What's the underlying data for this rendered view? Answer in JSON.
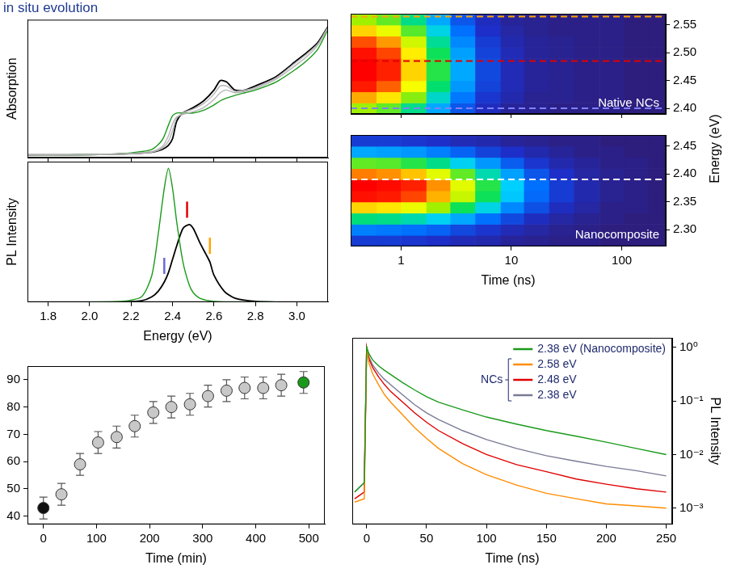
{
  "chart_data": [
    {
      "type": "line",
      "title": "in situ evolution",
      "y_label": "Absorption",
      "tick_labels": false,
      "x": [
        1.7,
        1.9,
        2.1,
        2.2,
        2.3,
        2.35,
        2.38,
        2.4,
        2.42,
        2.45,
        2.5,
        2.55,
        2.6,
        2.63,
        2.66,
        2.7,
        2.75,
        2.8,
        2.9,
        3.0,
        3.05,
        3.1,
        3.15
      ],
      "series": [
        {
          "color": "#b4b4b4",
          "values": [
            0.02,
            0.02,
            0.025,
            0.03,
            0.045,
            0.08,
            0.16,
            0.25,
            0.3,
            0.32,
            0.34,
            0.37,
            0.43,
            0.48,
            0.5,
            0.48,
            0.49,
            0.51,
            0.58,
            0.69,
            0.75,
            0.83,
            0.96
          ]
        },
        {
          "color": "#b4b4b4",
          "values": [
            0.02,
            0.02,
            0.025,
            0.03,
            0.04,
            0.07,
            0.12,
            0.2,
            0.29,
            0.33,
            0.36,
            0.4,
            0.47,
            0.53,
            0.53,
            0.49,
            0.5,
            0.52,
            0.59,
            0.71,
            0.77,
            0.84,
            0.965
          ]
        },
        {
          "color": "#1a9a1a",
          "values": [
            0.02,
            0.02,
            0.025,
            0.035,
            0.06,
            0.13,
            0.24,
            0.31,
            0.33,
            0.33,
            0.33,
            0.35,
            0.39,
            0.42,
            0.44,
            0.46,
            0.48,
            0.5,
            0.56,
            0.66,
            0.72,
            0.8,
            0.95
          ]
        },
        {
          "color": "#000000",
          "values": [
            0.02,
            0.02,
            0.025,
            0.03,
            0.04,
            0.06,
            0.09,
            0.14,
            0.27,
            0.33,
            0.37,
            0.42,
            0.5,
            0.57,
            0.56,
            0.5,
            0.5,
            0.53,
            0.6,
            0.72,
            0.78,
            0.85,
            0.97
          ]
        }
      ],
      "xlim": [
        1.7,
        3.15
      ],
      "xticks": [
        1.8,
        {
          "value": 2,
          "label": "2.0"
        },
        2.2,
        2.4,
        2.6,
        2.8,
        {
          "value": 3,
          "label": "3.0"
        }
      ],
      "ylim": [
        0,
        1.02
      ],
      "yticks": []
    },
    {
      "type": "line",
      "x_label": "Energy (eV)",
      "y_label": "PL Intensity",
      "tick_labels": "x",
      "x": [
        2.0,
        2.15,
        2.25,
        2.3,
        2.33,
        2.36,
        2.38,
        2.4,
        2.42,
        2.45,
        2.48,
        2.5,
        2.53,
        2.56,
        2.58,
        2.6,
        2.65,
        2.7,
        2.8,
        2.9
      ],
      "series": [
        {
          "color": "#1a9a1a",
          "values": [
            0,
            0.005,
            0.04,
            0.2,
            0.5,
            0.85,
            1,
            0.85,
            0.6,
            0.3,
            0.13,
            0.07,
            0.03,
            0.015,
            0.01,
            0.005,
            0,
            0,
            0,
            0
          ]
        },
        {
          "color": "#000000",
          "values": [
            0,
            0,
            0.01,
            0.04,
            0.08,
            0.15,
            0.22,
            0.32,
            0.42,
            0.55,
            0.58,
            0.55,
            0.45,
            0.36,
            0.3,
            0.2,
            0.08,
            0.03,
            0.005,
            0
          ]
        }
      ],
      "energy_marks": [
        {
          "x": 2.36,
          "color": "#6a6ad8"
        },
        {
          "x": 2.47,
          "color": "#e00000"
        },
        {
          "x": 2.58,
          "color": "#ffa500"
        }
      ],
      "xlim": [
        1.7,
        3.15
      ],
      "xticks": [
        1.8,
        {
          "value": 2,
          "label": "2.0"
        },
        2.2,
        2.4,
        2.6,
        2.8,
        {
          "value": 3,
          "label": "3.0"
        }
      ],
      "ylim": [
        0,
        1.05
      ],
      "yticks": []
    },
    {
      "type": "scatter",
      "x_label": "Time (min)",
      "x": [
        0,
        34,
        69,
        103,
        138,
        172,
        207,
        241,
        276,
        310,
        345,
        379,
        414,
        448,
        490
      ],
      "values": [
        43,
        48,
        59,
        67,
        69,
        73,
        78,
        80,
        81,
        84,
        86,
        87,
        87,
        88,
        89
      ],
      "errors": [
        4,
        4,
        4,
        4,
        4,
        4,
        4,
        4,
        4,
        4,
        4,
        4,
        4,
        4,
        4
      ],
      "colors": [
        "#111111",
        "#c8c8c8",
        "#c8c8c8",
        "#c8c8c8",
        "#c8c8c8",
        "#c8c8c8",
        "#c8c8c8",
        "#c8c8c8",
        "#c8c8c8",
        "#c8c8c8",
        "#c8c8c8",
        "#c8c8c8",
        "#c8c8c8",
        "#c8c8c8",
        "#1a9a1a"
      ],
      "xlim": [
        -30,
        530
      ],
      "xticks": [
        0,
        100,
        200,
        300,
        400,
        500
      ],
      "ylim": [
        37,
        95
      ],
      "yticks": [
        40,
        50,
        60,
        70,
        80,
        90
      ]
    },
    {
      "type": "heatmap",
      "label": "Native NCs",
      "log": "x",
      "tick_labels": "y",
      "x_edges": [
        0.35,
        0.6,
        1,
        1.7,
        2.8,
        4.7,
        8,
        13,
        22,
        37,
        63,
        105,
        175,
        250
      ],
      "y_edges": [
        2.39,
        2.41,
        2.43,
        2.45,
        2.47,
        2.49,
        2.51,
        2.53,
        2.55,
        2.57
      ],
      "cells": [
        [
          0.55,
          0.5,
          0.39,
          0.25,
          0.14,
          0.07,
          0.03,
          0.02,
          0.01,
          0.01,
          0.01,
          0,
          0
        ],
        [
          0.75,
          0.68,
          0.53,
          0.34,
          0.19,
          0.09,
          0.05,
          0.02,
          0.02,
          0.01,
          0.01,
          0,
          0
        ],
        [
          0.92,
          0.83,
          0.64,
          0.41,
          0.23,
          0.11,
          0.06,
          0.03,
          0.02,
          0.01,
          0.01,
          0,
          0
        ],
        [
          1,
          0.9,
          0.7,
          0.45,
          0.25,
          0.12,
          0.06,
          0.03,
          0.02,
          0.01,
          0.01,
          0,
          0
        ],
        [
          1,
          0.9,
          0.7,
          0.45,
          0.25,
          0.12,
          0.06,
          0.03,
          0.02,
          0.01,
          0.01,
          0,
          0
        ],
        [
          0.95,
          0.86,
          0.67,
          0.43,
          0.24,
          0.11,
          0.06,
          0.03,
          0.02,
          0.01,
          0.01,
          0,
          0
        ],
        [
          0.85,
          0.77,
          0.6,
          0.38,
          0.21,
          0.1,
          0.05,
          0.03,
          0.02,
          0.01,
          0.01,
          0,
          0
        ],
        [
          0.7,
          0.63,
          0.49,
          0.32,
          0.18,
          0.08,
          0.04,
          0.02,
          0.01,
          0.01,
          0.01,
          0,
          0
        ],
        [
          0.55,
          0.5,
          0.39,
          0.25,
          0.14,
          0.07,
          0.03,
          0.02,
          0.01,
          0.01,
          0.01,
          0,
          0
        ]
      ],
      "lines": [
        {
          "y": 2.565,
          "color": "#ffa500"
        },
        {
          "y": 2.485,
          "color": "#e00000"
        },
        {
          "y": 2.4,
          "color": "#8080ff"
        }
      ],
      "xlim": [
        0.35,
        250
      ],
      "xticks": [
        1,
        10,
        100
      ],
      "ylim": [
        2.39,
        2.57
      ],
      "yticks": [
        {
          "value": 2.4,
          "label": "2.40"
        },
        2.45,
        {
          "value": 2.5,
          "label": "2.50"
        },
        2.55
      ]
    },
    {
      "type": "heatmap",
      "label": "Nanocomposite",
      "log": "x",
      "x_label": "Time (ns)",
      "y_label": "Energy (eV)",
      "x_edges": [
        0.35,
        0.6,
        1,
        1.7,
        2.8,
        4.7,
        8,
        13,
        22,
        37,
        63,
        105,
        175,
        250
      ],
      "y_edges": [
        2.27,
        2.29,
        2.31,
        2.33,
        2.35,
        2.37,
        2.39,
        2.41,
        2.43,
        2.45,
        2.47
      ],
      "cells": [
        [
          0.1,
          0.1,
          0.09,
          0.08,
          0.06,
          0.05,
          0.03,
          0.02,
          0.01,
          0.01,
          0,
          0,
          0
        ],
        [
          0.2,
          0.19,
          0.18,
          0.16,
          0.12,
          0.09,
          0.06,
          0.04,
          0.02,
          0.01,
          0,
          0,
          0
        ],
        [
          0.4,
          0.39,
          0.36,
          0.31,
          0.25,
          0.18,
          0.12,
          0.07,
          0.04,
          0.02,
          0.01,
          0,
          0
        ],
        [
          0.7,
          0.68,
          0.63,
          0.55,
          0.43,
          0.32,
          0.21,
          0.13,
          0.07,
          0.04,
          0.01,
          0.01,
          0
        ],
        [
          0.95,
          0.92,
          0.86,
          0.74,
          0.59,
          0.43,
          0.29,
          0.17,
          0.1,
          0.05,
          0.02,
          0.01,
          0
        ],
        [
          1,
          0.97,
          0.9,
          0.78,
          0.62,
          0.45,
          0.3,
          0.18,
          0.1,
          0.05,
          0.02,
          0.01,
          0
        ],
        [
          0.8,
          0.78,
          0.72,
          0.62,
          0.5,
          0.36,
          0.24,
          0.14,
          0.08,
          0.04,
          0.02,
          0.01,
          0
        ],
        [
          0.5,
          0.49,
          0.45,
          0.39,
          0.31,
          0.23,
          0.15,
          0.09,
          0.05,
          0.03,
          0.01,
          0.01,
          0
        ],
        [
          0.25,
          0.24,
          0.23,
          0.2,
          0.16,
          0.11,
          0.08,
          0.05,
          0.03,
          0.01,
          0.01,
          0,
          0
        ],
        [
          0.1,
          0.1,
          0.09,
          0.08,
          0.06,
          0.05,
          0.03,
          0.02,
          0.01,
          0.01,
          0,
          0,
          0
        ]
      ],
      "lines": [
        {
          "y": 2.39,
          "color": "#ffffff"
        }
      ],
      "xlim": [
        0.35,
        250
      ],
      "xticks": [
        1,
        10,
        100
      ],
      "ylim": [
        2.27,
        2.47
      ],
      "yticks": [
        {
          "value": 2.3,
          "label": "2.30"
        },
        2.35,
        {
          "value": 2.4,
          "label": "2.40"
        },
        2.45
      ]
    },
    {
      "type": "line",
      "log": "y",
      "x_label": "Time (ns)",
      "y_label": "PL Intensity",
      "legend": "upper right",
      "x": [
        -10,
        -2,
        0,
        2,
        5,
        10,
        15,
        20,
        30,
        40,
        50,
        60,
        80,
        100,
        125,
        150,
        175,
        200,
        225,
        250
      ],
      "series": [
        {
          "name": "2.38 eV (Nanocomposite)",
          "color": "#1a9a1a",
          "values": [
            0.002,
            0.003,
            1,
            0.75,
            0.58,
            0.45,
            0.37,
            0.31,
            0.22,
            0.16,
            0.12,
            0.095,
            0.068,
            0.05,
            0.037,
            0.028,
            0.022,
            0.017,
            0.013,
            0.01
          ]
        },
        {
          "name": "2.58 eV",
          "group": "NCs",
          "color": "#ff8c00",
          "values": [
            0.0013,
            0.0015,
            1,
            0.5,
            0.32,
            0.2,
            0.13,
            0.095,
            0.055,
            0.032,
            0.02,
            0.013,
            0.0068,
            0.0042,
            0.0027,
            0.0019,
            0.0015,
            0.0012,
            0.0011,
            0.001
          ]
        },
        {
          "name": "2.48 eV",
          "group": "NCs",
          "color": "#e00000",
          "values": [
            0.0015,
            0.002,
            1,
            0.6,
            0.42,
            0.28,
            0.2,
            0.15,
            0.095,
            0.06,
            0.04,
            0.028,
            0.016,
            0.01,
            0.0065,
            0.0048,
            0.0035,
            0.0028,
            0.0023,
            0.002
          ]
        },
        {
          "name": "2.38 eV",
          "group": "NCs",
          "color": "#7a7a96",
          "values": [
            0.002,
            0.003,
            1,
            0.65,
            0.47,
            0.33,
            0.25,
            0.2,
            0.13,
            0.085,
            0.06,
            0.045,
            0.028,
            0.019,
            0.013,
            0.0095,
            0.0075,
            0.006,
            0.005,
            0.004
          ]
        }
      ],
      "xlim": [
        -12,
        255
      ],
      "xticks": [
        0,
        50,
        100,
        150,
        200,
        250
      ],
      "ylim": [
        0.0005,
        1.5
      ],
      "yticks": [
        {
          "value": 0.001,
          "label": "10⁻³"
        },
        {
          "value": 0.01,
          "label": "10⁻²"
        },
        {
          "value": 0.1,
          "label": "10⁻¹"
        },
        {
          "value": 1,
          "label": "10⁰"
        }
      ]
    }
  ]
}
